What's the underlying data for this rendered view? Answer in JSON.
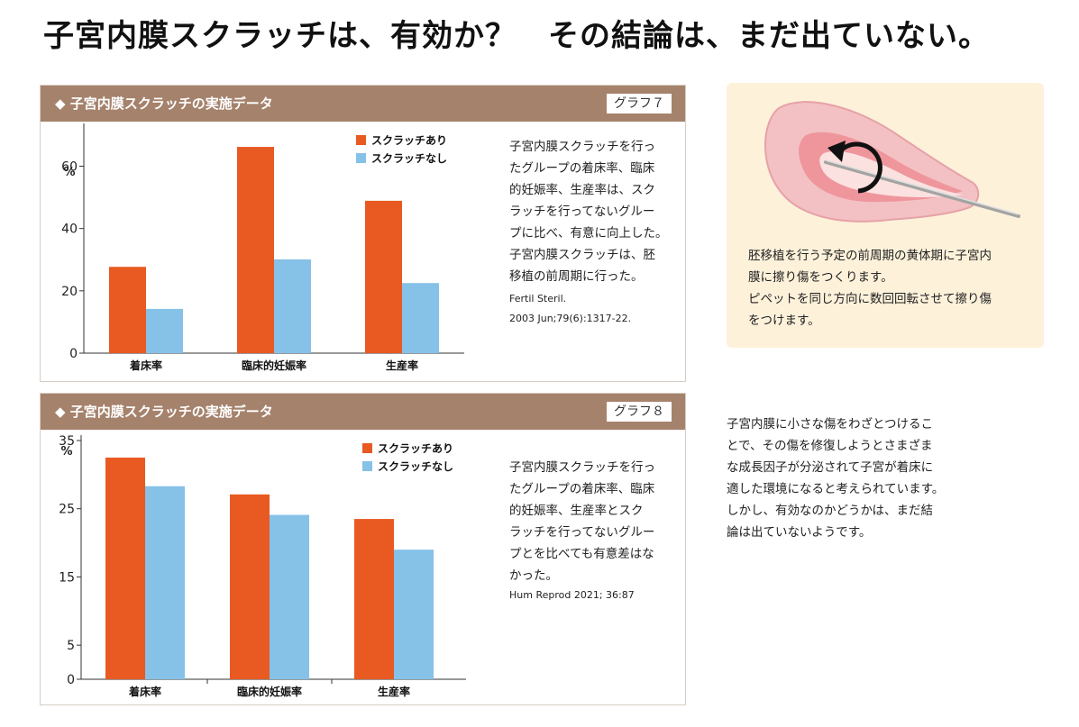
{
  "headline": "子宮内膜スクラッチは、有効か？　その結論は、まだ出ていない。",
  "panels": [
    {
      "title": "◆ 子宮内膜スクラッチの実施データ",
      "tag": "グラフ７",
      "description_lines": [
        "子宮内膜スクラッチを行っ",
        "たグループの着床率、臨床",
        "的妊娠率、生産率は、スク",
        "ラッチを行ってないグルー",
        "プに比べ、有意に向上した。",
        "子宮内膜スクラッチは、胚",
        "移植の前周期に行った。"
      ],
      "source_lines": [
        "Fertil Steril.",
        "2003 Jun;79(6):1317-22."
      ]
    },
    {
      "title": "◆ 子宮内膜スクラッチの実施データ",
      "tag": "グラフ８",
      "description_lines": [
        "子宮内膜スクラッチを行っ",
        "たグループの着床率、臨床",
        "的妊娠率、生産率とスク",
        "ラッチを行ってないグルー",
        "プとを比べても有意差はな",
        "かった。"
      ],
      "source_lines": [
        "Hum Reprod 2021; 36:87"
      ]
    }
  ],
  "illustration": {
    "caption_lines": [
      "胚移植を行う予定の前周期の黄体期に子宮内",
      "膜に擦り傷をつくります。",
      "ピペットを同じ方向に数回回転させて擦り傷",
      "をつけます。"
    ]
  },
  "side_note_lines": [
    "子宮内膜に小さな傷をわざとつけるこ",
    "とで、その傷を修復しようとさまざま",
    "な成長因子が分泌されて子宮が着床に",
    "適した環境になると考えられています。",
    "しかし、有効なのかどうかは、まだ結",
    "論は出ていないようです。"
  ],
  "colors": {
    "with_scratch": "#e85a22",
    "without_scratch": "#86c1e8",
    "header_brown": "#a5826c",
    "illus_bg": "#fdf1da"
  },
  "chart_data": [
    {
      "type": "bar",
      "categories": [
        "着床率",
        "臨床的妊娠率",
        "生産率"
      ],
      "series": [
        {
          "name": "スクラッチあり",
          "values": [
            27.7,
            66.2,
            48.9
          ]
        },
        {
          "name": "スクラッチなし",
          "values": [
            14.2,
            30.1,
            22.5
          ]
        }
      ],
      "ylabel": "%",
      "yticks": [
        0,
        20,
        40,
        60
      ],
      "ylim": [
        0,
        72
      ],
      "legend_position": "top-right",
      "grid": false
    },
    {
      "type": "bar",
      "categories": [
        "着床率",
        "臨床的妊娠率",
        "生産率"
      ],
      "series": [
        {
          "name": "スクラッチあり",
          "values": [
            32.5,
            27.1,
            23.5
          ]
        },
        {
          "name": "スクラッチなし",
          "values": [
            28.3,
            24.1,
            19.0
          ]
        }
      ],
      "ylabel": "%",
      "yticks": [
        0,
        5,
        15,
        25,
        35
      ],
      "ylim": [
        0,
        35
      ],
      "legend_position": "top-right",
      "grid": false
    }
  ]
}
